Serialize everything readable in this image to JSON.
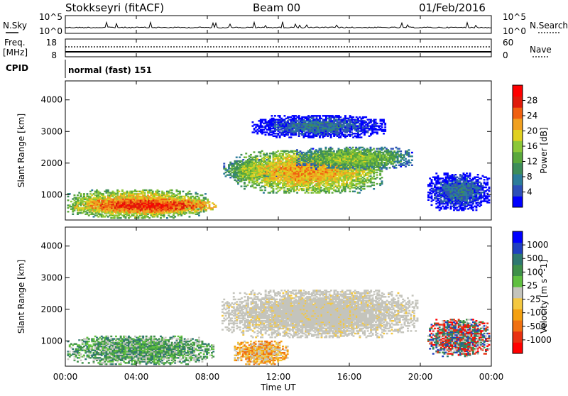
{
  "header": {
    "station": "Stokkseyri (fitACF)",
    "beam": "Beam 00",
    "date": "01/Feb/2016"
  },
  "noise_panel": {
    "left_label": "N.Sky",
    "left_ticks": [
      "10^5",
      "10^0"
    ],
    "right_ticks": [
      "10^5",
      "10^0"
    ],
    "right_label": "N.Search"
  },
  "freq_panel": {
    "left_label_1": "Freq.",
    "left_label_2": "[MHz]",
    "left_ticks": [
      "18",
      "8"
    ],
    "right_ticks": [
      "60",
      "0"
    ],
    "right_label": "Nave",
    "cpid_label": "CPID",
    "cpid_text": "normal (fast) 151"
  },
  "chart_data": [
    {
      "type": "heatmap",
      "ylabel": "Slant Range [km]",
      "xlabel": "Time UT",
      "xlim": [
        0,
        24
      ],
      "ylim": [
        200,
        4600
      ],
      "x_ticks": [
        "00:00",
        "04:00",
        "08:00",
        "12:00",
        "16:00",
        "20:00",
        "00:00"
      ],
      "y_ticks": [
        1000,
        2000,
        3000,
        4000
      ],
      "colorbar": {
        "label": "Power [dB]",
        "ticks": [
          "28",
          "24",
          "20",
          "16",
          "12",
          "8",
          "4"
        ],
        "colors": [
          "#0000ff",
          "#2d4fb8",
          "#2c7c9a",
          "#3d8d5a",
          "#5aa83c",
          "#8cc838",
          "#e0d020",
          "#f0a020",
          "#f06010",
          "#e01a0a",
          "#ff0000"
        ]
      },
      "regions": [
        {
          "t0": 0.1,
          "t1": 7.9,
          "r0": 250,
          "r1": 1150,
          "level": "high"
        },
        {
          "t0": 0.5,
          "t1": 8.5,
          "r0": 400,
          "r1": 900,
          "level": "very-high"
        },
        {
          "t0": 8.8,
          "t1": 12.0,
          "r0": 1450,
          "r1": 2100,
          "level": "mid"
        },
        {
          "t0": 9.5,
          "t1": 17.8,
          "r0": 1050,
          "r1": 2400,
          "level": "high"
        },
        {
          "t0": 13.0,
          "t1": 19.5,
          "r0": 1800,
          "r1": 2500,
          "level": "mid"
        },
        {
          "t0": 10.5,
          "t1": 18.0,
          "r0": 2800,
          "r1": 3500,
          "level": "low"
        },
        {
          "t0": 20.4,
          "t1": 23.9,
          "r0": 500,
          "r1": 1700,
          "level": "low"
        }
      ]
    },
    {
      "type": "heatmap",
      "ylabel": "Slant Range [km]",
      "xlabel": "Time UT",
      "xlim": [
        0,
        24
      ],
      "ylim": [
        200,
        4600
      ],
      "x_ticks": [
        "00:00",
        "04:00",
        "08:00",
        "12:00",
        "16:00",
        "20:00",
        "00:00"
      ],
      "y_ticks": [
        1000,
        2000,
        3000,
        4000
      ],
      "colorbar": {
        "label": "Velocity [m s^-1]",
        "ticks": [
          "1000",
          "500",
          "100",
          "25",
          "-25",
          "-100",
          "-500",
          "-1000"
        ],
        "colors": [
          "#ff0000",
          "#e83010",
          "#f07010",
          "#f4a010",
          "#f4c840",
          "#c4c4bc",
          "#60c040",
          "#3e9048",
          "#2e7870",
          "#2040c0",
          "#0000ff"
        ]
      },
      "regions": [
        {
          "t0": 0.1,
          "t1": 8.3,
          "r0": 250,
          "r1": 1150,
          "level": "green"
        },
        {
          "t0": 8.8,
          "t1": 19.8,
          "r0": 1100,
          "r1": 2600,
          "level": "grey"
        },
        {
          "t0": 9.5,
          "t1": 12.5,
          "r0": 250,
          "r1": 1000,
          "level": "orange"
        },
        {
          "t0": 20.4,
          "t1": 23.9,
          "r0": 500,
          "r1": 1700,
          "level": "mixed"
        }
      ]
    }
  ]
}
